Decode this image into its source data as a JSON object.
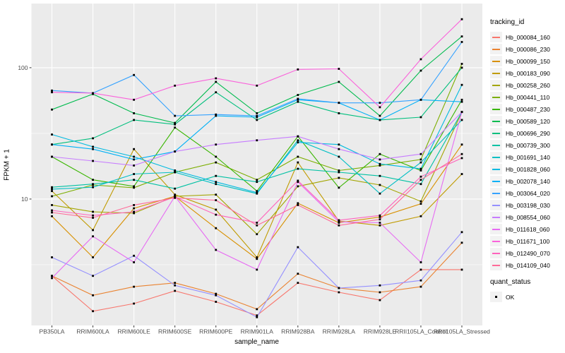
{
  "figure": {
    "bg": "#FFFFFF",
    "panel_bg": "#EBEBEB",
    "grid_color": "#FFFFFF",
    "axis_text_color": "#4D4D4D",
    "tick_color": "#333333",
    "point_color": "#000000",
    "legend_key_bg": "#F2F2F2"
  },
  "chart_data": {
    "type": "line",
    "title": "",
    "xlabel": "sample_name",
    "ylabel": "FPKM + 1",
    "y_scale": "log10",
    "ylim": [
      1.09,
      308
    ],
    "grid": "on",
    "legend_position": "right",
    "legend_title": "tracking_id",
    "legend2": {
      "title": "quant_status",
      "items": [
        "OK"
      ]
    },
    "x_categories": [
      "PB350LA",
      "RRIM600LA",
      "RRIM600LE",
      "RRIM600SE",
      "RRIM600PE",
      "RRIM901LA",
      "RRIM928BA",
      "RRIM928LA",
      "RRIM928LE",
      "RRII105LA_Control",
      "RRII105LA_Stressed"
    ],
    "y_major_ticks": [
      {
        "label": "100",
        "value": 100
      },
      {
        "label": "10",
        "value": 10
      }
    ],
    "y_minor_ticks": [
      31.62,
      3.162
    ],
    "series": [
      {
        "name": "Hb_000084_160",
        "color": "#F8766D",
        "values": [
          2.6,
          1.4,
          1.6,
          2.0,
          1.65,
          1.3,
          2.3,
          1.95,
          1.7,
          2.9,
          2.9
        ]
      },
      {
        "name": "Hb_000086_230",
        "color": "#EA8331",
        "values": [
          2.6,
          1.85,
          2.15,
          2.3,
          1.9,
          1.45,
          2.7,
          2.1,
          1.95,
          2.15,
          4.65
        ]
      },
      {
        "name": "Hb_000099_150",
        "color": "#D89000",
        "values": [
          7.4,
          3.6,
          8.5,
          10.5,
          6.0,
          3.5,
          9.3,
          6.6,
          7.3,
          9.2,
          26
        ]
      },
      {
        "name": "Hb_000183_090",
        "color": "#C09B00",
        "values": [
          11.5,
          5.8,
          24,
          10.8,
          8.3,
          3.6,
          19,
          6.8,
          6.3,
          7.4,
          15.5
        ]
      },
      {
        "name": "Hb_000258_260",
        "color": "#A3A500",
        "values": [
          9.0,
          8.0,
          7.8,
          10.5,
          10.8,
          5.4,
          12.5,
          14.5,
          12.8,
          9.6,
          46
        ]
      },
      {
        "name": "Hb_000441_110",
        "color": "#7CAE00",
        "values": [
          10.5,
          12.8,
          12.2,
          16,
          19,
          14,
          21,
          16.5,
          18,
          20,
          107
        ]
      },
      {
        "name": "Hb_000487_230",
        "color": "#39B600",
        "values": [
          21,
          14,
          12.5,
          35,
          21,
          11.5,
          30,
          12.2,
          22,
          16.5,
          57
        ]
      },
      {
        "name": "Hb_000589_120",
        "color": "#00BB4E",
        "values": [
          48,
          63,
          45,
          38,
          78,
          45,
          62,
          78,
          43,
          95,
          173
        ]
      },
      {
        "name": "Hb_000696_290",
        "color": "#00BF7D",
        "values": [
          26,
          29,
          40,
          37,
          65,
          40,
          55,
          45,
          40,
          42,
          100
        ]
      },
      {
        "name": "Hb_000739_300",
        "color": "#00C1A3",
        "values": [
          12.3,
          13,
          14,
          12,
          15,
          13.5,
          17,
          16,
          15,
          13,
          46
        ]
      },
      {
        "name": "Hb_001691_140",
        "color": "#00BFC4",
        "values": [
          11.9,
          12.3,
          15.5,
          16,
          13,
          11,
          28,
          21,
          11,
          19,
          40
        ]
      },
      {
        "name": "Hb_001828_060",
        "color": "#00BAE0",
        "values": [
          31,
          25,
          21,
          16.5,
          13.5,
          11.2,
          27,
          26,
          18.5,
          17,
          74
        ]
      },
      {
        "name": "Hb_002078_140",
        "color": "#00B0F6",
        "values": [
          26,
          24,
          20,
          23,
          43,
          42,
          57,
          54,
          40,
          57,
          55
        ]
      },
      {
        "name": "Hb_003064_020",
        "color": "#35A2FF",
        "values": [
          67,
          64,
          88,
          43,
          44,
          43,
          58,
          54,
          54,
          57,
          157
        ]
      },
      {
        "name": "Hb_003198_030",
        "color": "#9590FF",
        "values": [
          3.6,
          2.6,
          3.7,
          2.2,
          1.85,
          1.26,
          4.3,
          2.1,
          2.2,
          2.4,
          5.6
        ]
      },
      {
        "name": "Hb_008554_060",
        "color": "#C77CFF",
        "values": [
          21,
          19.5,
          18,
          23,
          26,
          28,
          30,
          24,
          20,
          22,
          46
        ]
      },
      {
        "name": "Hb_011618_060",
        "color": "#E76BF3",
        "values": [
          2.5,
          5.2,
          3.3,
          10.5,
          4.1,
          2.9,
          13.5,
          6.7,
          6.6,
          3.3,
          46
        ]
      },
      {
        "name": "Hb_011671_100",
        "color": "#FA62DB",
        "values": [
          65,
          64,
          57,
          73,
          83,
          73,
          97,
          98,
          50,
          116,
          234
        ]
      },
      {
        "name": "Hb_012490_070",
        "color": "#FF62BC",
        "values": [
          8.2,
          7.5,
          8.0,
          10.4,
          7.6,
          6.6,
          13.8,
          6.9,
          7.5,
          14.8,
          20.5
        ]
      },
      {
        "name": "Hb_014109_040",
        "color": "#FF6A98",
        "values": [
          7.9,
          7.2,
          9.0,
          10.2,
          9.8,
          6.3,
          9.0,
          6.3,
          7.0,
          14.0,
          22
        ]
      }
    ]
  }
}
